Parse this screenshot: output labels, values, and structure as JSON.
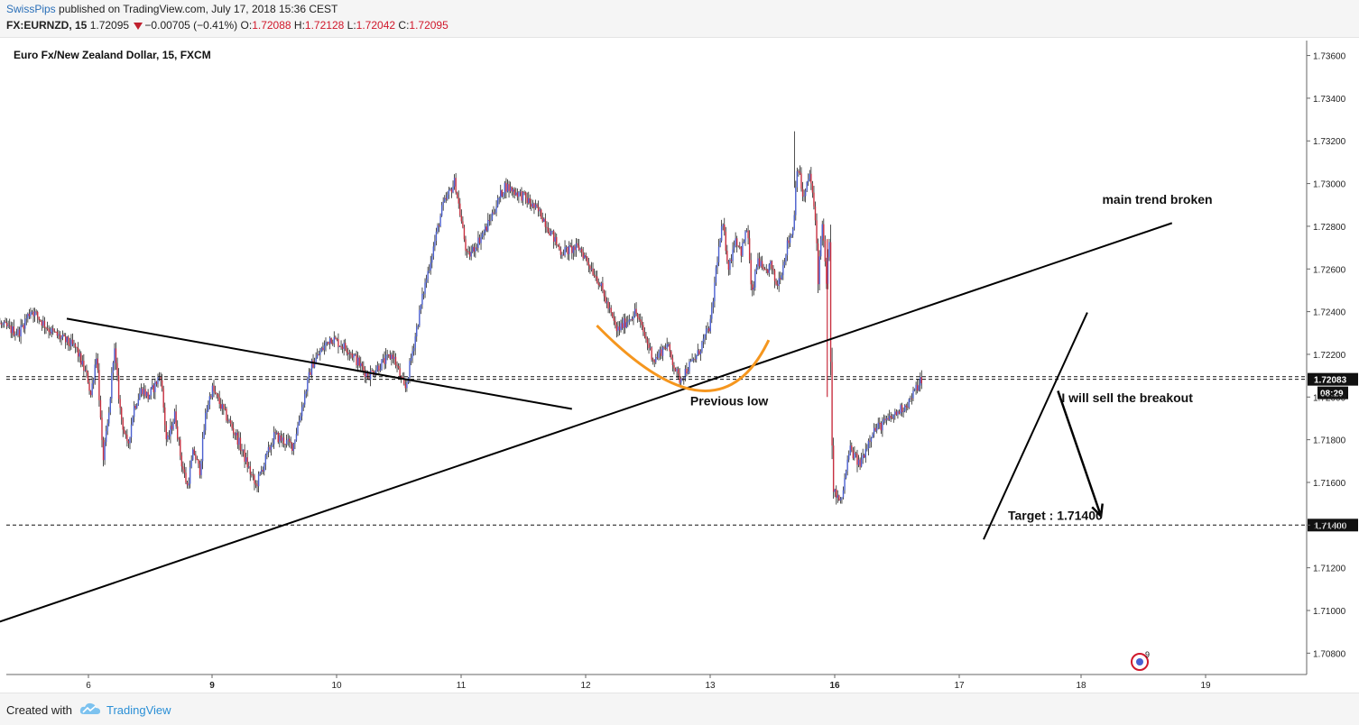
{
  "header": {
    "author": "SwissPips",
    "published": "published on TradingView.com, July 17, 2018 15:36 CEST",
    "symbol": "FX:EURNZD, 15",
    "last": "1.72095",
    "change": "−0.00705 (−0.41%)",
    "o_label": "O:",
    "o": "1.72088",
    "h_label": "H:",
    "h": "1.72128",
    "l_label": "L:",
    "l": "1.72042",
    "c_label": "C:",
    "c": "1.72095"
  },
  "colors": {
    "up": "#4a5fd0",
    "down": "#c83040",
    "wick": "#222222",
    "arc": "#f5961e",
    "price_label": "#111111"
  },
  "chart_data": {
    "type": "candlestick",
    "title": "Euro Fx/New Zealand Dollar, 15, FXCM",
    "y_ticks": [
      "1.73600",
      "1.73400",
      "1.73200",
      "1.73000",
      "1.72800",
      "1.72600",
      "1.72400",
      "1.72200",
      "1.72000",
      "1.71800",
      "1.71600",
      "1.71400",
      "1.71200",
      "1.71000",
      "1.70800"
    ],
    "ylim": [
      1.707,
      1.7367
    ],
    "x_ticks": [
      "6",
      "9",
      "10",
      "11",
      "12",
      "13",
      "16",
      "17",
      "18",
      "19"
    ],
    "x_bold_ticks": [
      "9",
      "16"
    ],
    "price_labels": [
      {
        "value": 1.72083,
        "text": "1.72083",
        "sub": "08:29"
      },
      {
        "value": 1.714,
        "text": "1.71400"
      }
    ],
    "dashed_levels": [
      1.72083,
      1.72095,
      1.714
    ],
    "trendlines": [
      {
        "x1": 5.0,
        "y1": 1.70886,
        "x2": 18.73,
        "y2": 1.72815
      },
      {
        "x1": 5.83,
        "y1": 1.72367,
        "x2": 11.89,
        "y2": 1.71944
      },
      {
        "x1": 17.2,
        "y1": 1.71333,
        "x2": 18.05,
        "y2": 1.72396
      }
    ],
    "arrow": {
      "x1": 17.81,
      "y1": 1.72029,
      "x2": 18.16,
      "y2": 1.71442
    },
    "arc": {
      "x_from": 12.09,
      "x_to": 14.41,
      "x_mid": 13.17,
      "y_bottom": 1.7203,
      "y_ends": [
        1.72335,
        1.72267
      ]
    },
    "annotations": [
      {
        "text": "main trend broken",
        "x": 18.17,
        "y": 1.72905
      },
      {
        "text": "Previous low",
        "x": 12.84,
        "y": 1.71962
      },
      {
        "text": "I will sell the breakout",
        "x": 17.84,
        "y": 1.71976
      },
      {
        "text": "Target : 1.71400",
        "x": 17.4,
        "y": 1.71425
      }
    ],
    "series": [
      {
        "name": "EURNZD",
        "anchors": [
          [
            5.04,
            1.7278
          ],
          [
            5.15,
            1.7255
          ],
          [
            5.3,
            1.7234
          ],
          [
            5.45,
            1.723
          ],
          [
            5.55,
            1.7241
          ],
          [
            5.7,
            1.7231
          ],
          [
            5.9,
            1.7223
          ],
          [
            6.05,
            1.72
          ],
          [
            6.2,
            1.7221
          ],
          [
            6.35,
            1.717
          ],
          [
            6.5,
            1.7192
          ],
          [
            6.62,
            1.7224
          ],
          [
            6.78,
            1.7192
          ],
          [
            6.95,
            1.7176
          ],
          [
            7.1,
            1.7195
          ],
          [
            7.3,
            1.7204
          ],
          [
            7.45,
            1.72
          ],
          [
            7.6,
            1.7205
          ],
          [
            7.75,
            1.7211
          ],
          [
            7.9,
            1.7178
          ],
          [
            8.1,
            1.7192
          ],
          [
            8.25,
            1.717
          ],
          [
            8.4,
            1.7158
          ],
          [
            8.55,
            1.7175
          ],
          [
            8.7,
            1.7165
          ],
          [
            8.85,
            1.7193
          ],
          [
            9.0,
            1.7204
          ],
          [
            9.2,
            1.7181
          ],
          [
            9.35,
            1.7158
          ],
          [
            9.5,
            1.7182
          ],
          [
            9.65,
            1.7177
          ],
          [
            9.8,
            1.7215
          ],
          [
            9.95,
            1.7228
          ],
          [
            10.1,
            1.7222
          ],
          [
            10.25,
            1.721
          ],
          [
            10.45,
            1.722
          ],
          [
            10.55,
            1.7203
          ],
          [
            10.7,
            1.725
          ],
          [
            10.85,
            1.7289
          ],
          [
            10.95,
            1.7301
          ],
          [
            11.05,
            1.7265
          ],
          [
            11.2,
            1.7279
          ],
          [
            11.35,
            1.7299
          ],
          [
            11.5,
            1.7294
          ],
          [
            11.65,
            1.7285
          ],
          [
            11.8,
            1.7268
          ],
          [
            11.95,
            1.727
          ],
          [
            12.1,
            1.7255
          ],
          [
            12.25,
            1.7231
          ],
          [
            12.4,
            1.724
          ],
          [
            12.55,
            1.7217
          ],
          [
            12.65,
            1.7225
          ],
          [
            12.75,
            1.7208
          ],
          [
            12.9,
            1.722
          ],
          [
            13.05,
            1.7241
          ],
          [
            13.15,
            1.7262
          ],
          [
            13.3,
            1.7281
          ],
          [
            13.45,
            1.726
          ],
          [
            13.6,
            1.7275
          ],
          [
            13.75,
            1.7268
          ],
          [
            13.9,
            1.728
          ],
          [
            14.0,
            1.7246
          ],
          [
            14.15,
            1.7265
          ],
          [
            14.3,
            1.7257
          ],
          [
            14.45,
            1.7262
          ],
          [
            14.6,
            1.7252
          ],
          [
            14.75,
            1.7261
          ],
          [
            14.85,
            1.7271
          ],
          [
            15.0,
            1.7279
          ],
          [
            15.1,
            1.731
          ],
          [
            15.25,
            1.7292
          ],
          [
            15.4,
            1.7305
          ],
          [
            15.55,
            1.728
          ],
          [
            15.6,
            1.7255
          ],
          [
            15.7,
            1.7283
          ],
          [
            15.8,
            1.7252
          ],
          [
            15.88,
            1.7278
          ],
          [
            15.9,
            1.7218
          ],
          [
            15.95,
            1.716
          ],
          [
            16.05,
            1.715
          ],
          [
            16.12,
            1.7176
          ],
          [
            16.2,
            1.7168
          ],
          [
            16.3,
            1.7184
          ],
          [
            16.45,
            1.719
          ],
          [
            16.6,
            1.7198
          ],
          [
            16.7,
            1.7209
          ]
        ]
      }
    ]
  },
  "watermark": {
    "badge": "9"
  },
  "footer": {
    "created": "Created with",
    "brand": "TradingView"
  }
}
